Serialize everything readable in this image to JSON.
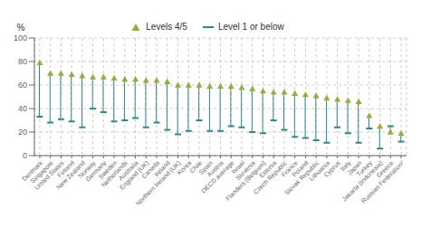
{
  "chart_data": {
    "type": "dumbbell",
    "ylabel": "%",
    "categories": [
      "Denmark",
      "Singapore",
      "United States",
      "Finland",
      "New Zealand",
      "Norway",
      "Germany",
      "Sweden",
      "Netherlands",
      "Australia",
      "England (UK)",
      "Canada",
      "Ireland",
      "Northern Ireland (UK)",
      "Korea",
      "Chile",
      "Spain",
      "Austria",
      "OECD average",
      "Israel",
      "Slovenia",
      "Flanders (Belgium)",
      "Estonia",
      "Czech Republic",
      "France",
      "Poland",
      "Slovak Republic",
      "Lithuania",
      "Cyprus",
      "Italy",
      "Japan",
      "Turkey",
      "Jakarta (Indonesia)",
      "Greece",
      "Russian Federation²"
    ],
    "series": [
      {
        "name": "Levels 4/5",
        "color": "#9aab3a",
        "marker": "triangle",
        "values": [
          79,
          70,
          70,
          69,
          68,
          67,
          67,
          66,
          65,
          65,
          64,
          64,
          63,
          60,
          60,
          60,
          59,
          59,
          59,
          58,
          57,
          55,
          54,
          54,
          53,
          52,
          51,
          49,
          48,
          47,
          46,
          34,
          25,
          20,
          19
        ]
      },
      {
        "name": "Level 1 or below",
        "color": "#2e8b8b",
        "marker": "dash",
        "values": [
          33,
          28,
          31,
          29,
          24,
          40,
          37,
          29,
          30,
          32,
          24,
          28,
          22,
          18,
          21,
          30,
          21,
          21,
          25,
          24,
          20,
          19,
          30,
          22,
          16,
          15,
          13,
          11,
          24,
          19,
          11,
          23,
          6,
          25,
          12
        ]
      }
    ],
    "ylim": [
      0,
      100
    ],
    "yticks": [
      0,
      20,
      40,
      60,
      80,
      100
    ],
    "grid": true,
    "legend": "top"
  }
}
